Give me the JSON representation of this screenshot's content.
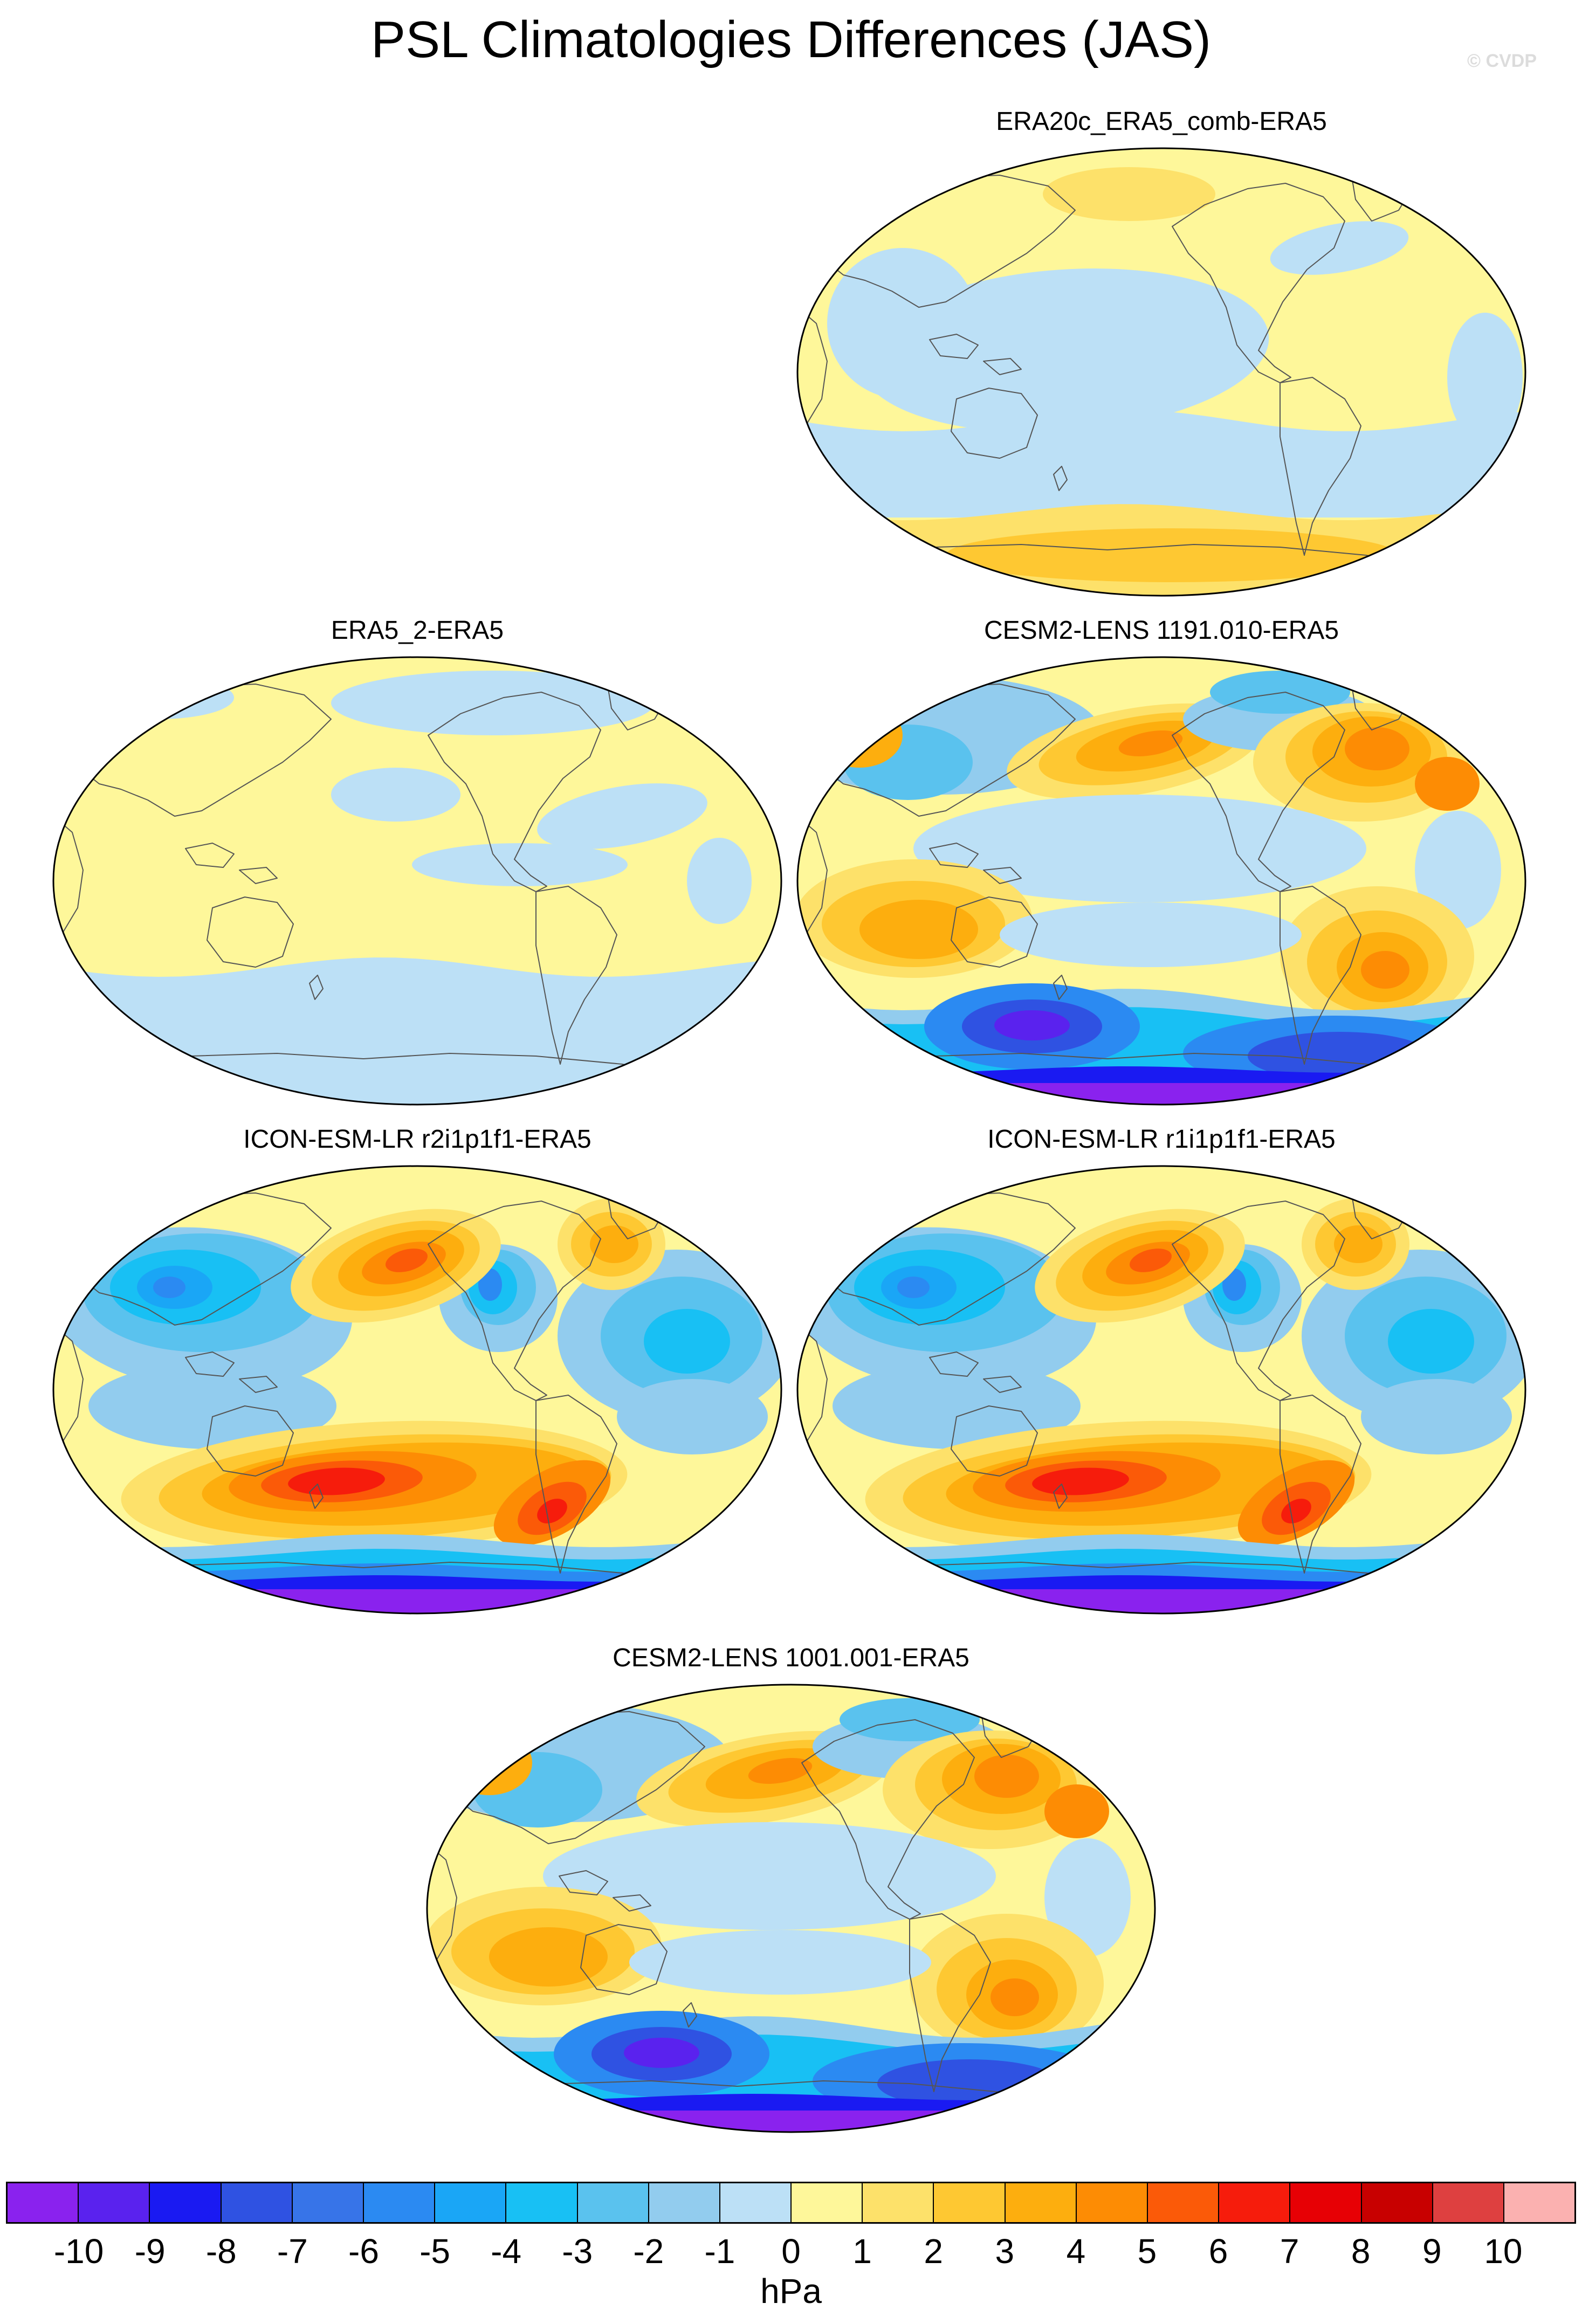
{
  "title": "PSL Climatologies Differences (JAS)",
  "watermark": "© CVDP",
  "colors": {
    "n10": "#8a22ee",
    "n9": "#5a22ee",
    "n8": "#1a1af2",
    "n7": "#2f52e2",
    "n6": "#3774e8",
    "n5": "#2b8af2",
    "n4": "#1aa6f6",
    "n3": "#18c0f4",
    "n2": "#5ac2ee",
    "n1": "#92ccee",
    "z0": "#bce0f6",
    "p0": "#fef79a",
    "p1": "#fde16a",
    "p2": "#fec832",
    "p3": "#fdae0e",
    "p4": "#fd8c04",
    "p5": "#fb5a08",
    "p6": "#f61c0c",
    "p7": "#e70005",
    "p8": "#c80000",
    "p9": "#de4040",
    "p10": "#fbb1b0",
    "coast": "#555555",
    "outline": "#000000"
  },
  "panels": [
    {
      "id": "era20c",
      "title": "ERA20c_ERA5_comb-ERA5",
      "style": "weak_mixed"
    },
    {
      "id": "era5_2",
      "title": "ERA5_2-ERA5",
      "style": "weak_yellow"
    },
    {
      "id": "cesm1191",
      "title": "CESM2-LENS 1191.010-ERA5",
      "style": "cesm"
    },
    {
      "id": "icon_r2",
      "title": "ICON-ESM-LR r2i1p1f1-ERA5",
      "style": "icon"
    },
    {
      "id": "icon_r1",
      "title": "ICON-ESM-LR r1i1p1f1-ERA5",
      "style": "icon"
    },
    {
      "id": "cesm1001",
      "title": "CESM2-LENS 1001.001-ERA5",
      "style": "cesm"
    }
  ],
  "colorbar": {
    "unit": "hPa",
    "ticks": [
      "-10",
      "-9",
      "-8",
      "-7",
      "-6",
      "-5",
      "-4",
      "-3",
      "-2",
      "-1",
      "0",
      "1",
      "2",
      "3",
      "4",
      "5",
      "6",
      "7",
      "8",
      "9",
      "10"
    ],
    "colors": [
      "#8a22ee",
      "#5a22ee",
      "#1a1af2",
      "#2f52e2",
      "#3774e8",
      "#2b8af2",
      "#1aa6f6",
      "#18c0f4",
      "#5ac2ee",
      "#92ccee",
      "#bce0f6",
      "#fef79a",
      "#fde16a",
      "#fec832",
      "#fdae0e",
      "#fd8c04",
      "#fb5a08",
      "#f61c0c",
      "#e70005",
      "#c80000",
      "#de4040",
      "#fbb1b0"
    ]
  }
}
